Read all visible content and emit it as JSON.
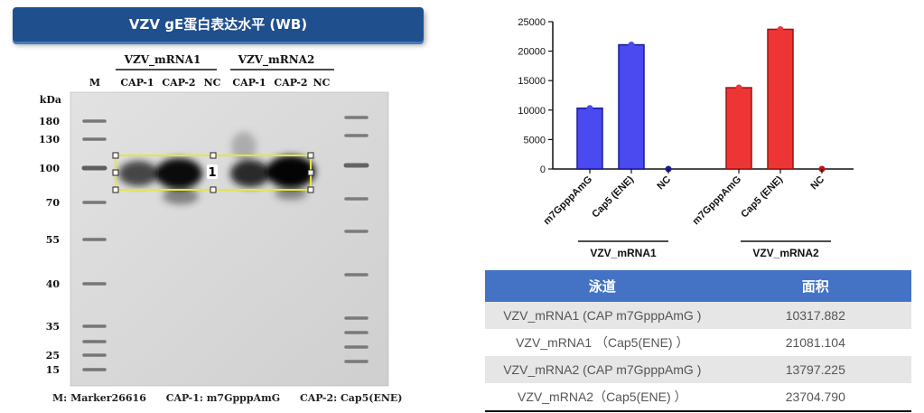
{
  "banner": {
    "title": "VZV gE蛋白表达水平 (WB)"
  },
  "blot": {
    "group_labels": [
      "VZV_mRNA1",
      "VZV_mRNA2"
    ],
    "lane_labels": [
      "M",
      "CAP-1",
      "CAP-2",
      "NC",
      "CAP-1",
      "CAP-2",
      "NC"
    ],
    "kda_unit": "kDa",
    "kda_markers": [
      "180",
      "130",
      "100",
      "70",
      "55",
      "40",
      "35",
      "25",
      "15"
    ],
    "box_badge": "1",
    "legend": [
      "M: Marker26616",
      "CAP-1: m7GpppAmG",
      "CAP-2: Cap5(ENE)"
    ]
  },
  "chart_data": {
    "type": "bar",
    "categories": [
      "m7GpppAmG",
      "Cap5 (ENE)",
      "NC",
      "m7GpppAmG",
      "Cap5 (ENE)",
      "NC"
    ],
    "series": [
      {
        "values": [
          10317.882,
          21081.104,
          0,
          13797.225,
          23704.79,
          0
        ]
      }
    ],
    "ylim": [
      0,
      25000
    ],
    "yticks": [
      "0",
      "5000",
      "10000",
      "15000",
      "20000",
      "25000"
    ],
    "group_labels": [
      "VZV_mRNA1",
      "VZV_mRNA2"
    ],
    "colors": [
      "#4a4af0",
      "#4a4af0",
      "#1a1a9a",
      "#ee3535",
      "#ee3535",
      "#bb1111"
    ],
    "grid": false
  },
  "table": {
    "headers": [
      "泳道",
      "面积"
    ],
    "rows": [
      [
        "VZV_mRNA1 (CAP m7GpppAmG )",
        "10317.882"
      ],
      [
        "VZV_mRNA1 （Cap5(ENE) ）",
        "21081.104"
      ],
      [
        "VZV_mRNA2 (CAP m7GpppAmG )",
        "13797.225"
      ],
      [
        "VZV_mRNA2（Cap5(ENE) ）",
        "23704.790"
      ]
    ]
  }
}
